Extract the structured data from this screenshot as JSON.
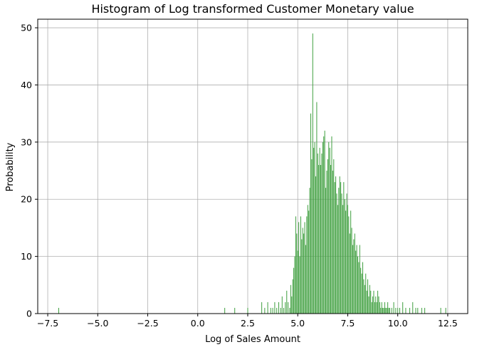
{
  "chart_data": {
    "type": "bar",
    "title": "Histogram of Log transformed Customer Monetary value",
    "xlabel": "Log of Sales Amount",
    "ylabel": "Probability",
    "xlim": [
      -8,
      13.5
    ],
    "ylim": [
      0,
      51.5
    ],
    "xticks": [
      -7.5,
      -5.0,
      -2.5,
      0.0,
      2.5,
      5.0,
      7.5,
      10.0,
      12.5
    ],
    "xtick_labels": [
      "−7.5",
      "−5.0",
      "−2.5",
      "0.0",
      "2.5",
      "5.0",
      "7.5",
      "10.0",
      "12.5"
    ],
    "yticks": [
      0,
      10,
      20,
      30,
      40,
      50
    ],
    "ytick_labels": [
      "0",
      "10",
      "20",
      "30",
      "40",
      "50"
    ],
    "grid": true,
    "bar_color": "#3f9f3f",
    "bin_width": 0.022,
    "series": [
      {
        "x": [
          -6.95,
          1.35,
          1.85,
          2.5,
          3.2,
          3.35,
          3.5,
          3.65,
          3.75,
          3.85,
          3.95,
          4.05,
          4.15,
          4.22,
          4.3,
          4.38,
          4.45,
          4.52,
          4.6,
          4.65,
          4.7,
          4.75,
          4.8,
          4.85,
          4.9,
          4.95,
          5.0,
          5.05,
          5.1,
          5.15,
          5.2,
          5.25,
          5.3,
          5.35,
          5.4,
          5.45,
          5.5,
          5.55,
          5.6,
          5.65,
          5.7,
          5.75,
          5.8,
          5.85,
          5.9,
          5.95,
          6.0,
          6.05,
          6.1,
          6.15,
          6.2,
          6.25,
          6.3,
          6.35,
          6.4,
          6.45,
          6.5,
          6.55,
          6.6,
          6.65,
          6.7,
          6.75,
          6.8,
          6.85,
          6.9,
          6.95,
          7.0,
          7.05,
          7.1,
          7.15,
          7.2,
          7.25,
          7.3,
          7.35,
          7.4,
          7.45,
          7.5,
          7.55,
          7.6,
          7.65,
          7.7,
          7.75,
          7.8,
          7.85,
          7.9,
          7.95,
          8.0,
          8.05,
          8.1,
          8.15,
          8.2,
          8.25,
          8.3,
          8.35,
          8.4,
          8.45,
          8.5,
          8.55,
          8.6,
          8.65,
          8.7,
          8.75,
          8.8,
          8.85,
          8.9,
          8.95,
          9.0,
          9.05,
          9.1,
          9.15,
          9.2,
          9.25,
          9.3,
          9.35,
          9.4,
          9.45,
          9.5,
          9.55,
          9.6,
          9.7,
          9.8,
          9.9,
          10.0,
          10.1,
          10.25,
          10.4,
          10.6,
          10.75,
          10.9,
          11.0,
          11.2,
          11.35,
          12.15,
          12.4
        ],
        "values": [
          1,
          1,
          1,
          1,
          2,
          1,
          2,
          1,
          1,
          2,
          1,
          2,
          1,
          3,
          1,
          2,
          4,
          2,
          1,
          5,
          3,
          6,
          8,
          10,
          17,
          14,
          11,
          16,
          10,
          17,
          13,
          15,
          14,
          16,
          12,
          17,
          19,
          18,
          22,
          35,
          27,
          49,
          29,
          30,
          24,
          37,
          28,
          26,
          29,
          26,
          28,
          30,
          31,
          32,
          22,
          25,
          27,
          30,
          29,
          26,
          31,
          25,
          27,
          23,
          24,
          21,
          19,
          22,
          24,
          23,
          21,
          19,
          23,
          20,
          18,
          21,
          19,
          17,
          14,
          18,
          15,
          12,
          13,
          14,
          11,
          12,
          10,
          9,
          12,
          8,
          7,
          9,
          6,
          5,
          7,
          4,
          6,
          3,
          5,
          4,
          2,
          3,
          4,
          2,
          3,
          2,
          4,
          3,
          2,
          1,
          2,
          1,
          1,
          2,
          1,
          1,
          2,
          1,
          1,
          1,
          2,
          1,
          1,
          1,
          2,
          1,
          1,
          2,
          1,
          1,
          1,
          1,
          1,
          1
        ]
      }
    ]
  }
}
